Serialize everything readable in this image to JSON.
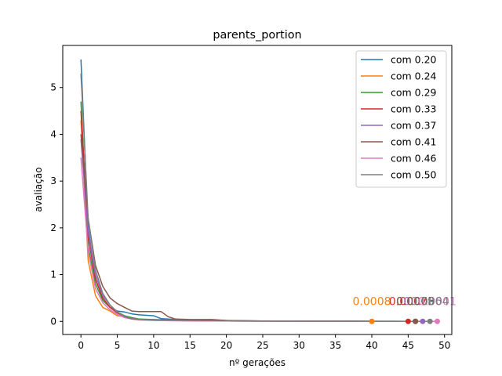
{
  "chart_data": {
    "type": "line",
    "title": "parents_portion",
    "xlabel": "nº gerações",
    "ylabel": "avaliação",
    "xlim": [
      -2.5,
      51.0
    ],
    "ylim": [
      -0.28,
      5.9
    ],
    "xticks": [
      0,
      5,
      10,
      15,
      20,
      25,
      30,
      35,
      40,
      45,
      50
    ],
    "yticks": [
      0,
      1,
      2,
      3,
      4,
      5
    ],
    "legend_position": "top-right",
    "grid": false,
    "series": [
      {
        "name": "com 0.20",
        "color": "#1f77b4",
        "x": [
          0,
          1,
          2,
          3,
          4,
          5,
          6,
          7,
          8,
          9,
          10,
          11,
          12,
          13,
          14,
          15,
          20,
          25,
          30,
          35,
          40,
          45,
          46
        ],
        "y": [
          5.6,
          2.0,
          0.9,
          0.5,
          0.3,
          0.22,
          0.2,
          0.16,
          0.14,
          0.13,
          0.12,
          0.06,
          0.05,
          0.04,
          0.04,
          0.03,
          0.02,
          0.01,
          0.01,
          0.005,
          0.003,
          0.002,
          0.0009
        ],
        "end_label": "0.0009"
      },
      {
        "name": "com 0.24",
        "color": "#ff7f0e",
        "x": [
          0,
          1,
          2,
          3,
          4,
          5,
          6,
          7,
          8,
          10,
          15,
          20,
          30,
          40
        ],
        "y": [
          4.3,
          1.3,
          0.55,
          0.3,
          0.22,
          0.12,
          0.1,
          0.05,
          0.04,
          0.03,
          0.02,
          0.01,
          0.005,
          0.0008
        ],
        "end_label": "0.0008"
      },
      {
        "name": "com 0.29",
        "color": "#2ca02c",
        "x": [
          0,
          1,
          2,
          3,
          4,
          5,
          6,
          7,
          8,
          10,
          15,
          20,
          30,
          40,
          45,
          46
        ],
        "y": [
          4.7,
          1.6,
          0.8,
          0.45,
          0.3,
          0.2,
          0.12,
          0.08,
          0.05,
          0.04,
          0.02,
          0.01,
          0.005,
          0.003,
          0.002,
          0.0008
        ],
        "end_label": "0.0008"
      },
      {
        "name": "com 0.33",
        "color": "#d62728",
        "x": [
          0,
          1,
          2,
          3,
          4,
          5,
          6,
          7,
          8,
          10,
          15,
          20,
          30,
          40,
          45
        ],
        "y": [
          4.5,
          1.8,
          0.9,
          0.5,
          0.3,
          0.18,
          0.1,
          0.06,
          0.04,
          0.03,
          0.02,
          0.01,
          0.005,
          0.002,
          0.0007
        ],
        "end_label": "0.0007"
      },
      {
        "name": "com 0.37",
        "color": "#9467bd",
        "x": [
          0,
          1,
          2,
          3,
          4,
          5,
          6,
          7,
          8,
          10,
          15,
          20,
          30,
          40,
          45,
          47
        ],
        "y": [
          3.9,
          1.9,
          1.0,
          0.55,
          0.35,
          0.2,
          0.1,
          0.06,
          0.04,
          0.03,
          0.02,
          0.01,
          0.005,
          0.002,
          0.001,
          0.0006
        ],
        "end_label": "0.0006"
      },
      {
        "name": "com 0.41",
        "color": "#8c564b",
        "x": [
          0,
          1,
          2,
          3,
          4,
          5,
          6,
          7,
          8,
          9,
          10,
          11,
          12,
          13,
          15,
          18,
          20,
          25,
          30,
          40,
          46
        ],
        "y": [
          4.0,
          2.2,
          1.2,
          0.75,
          0.5,
          0.38,
          0.3,
          0.22,
          0.21,
          0.21,
          0.21,
          0.21,
          0.1,
          0.05,
          0.04,
          0.04,
          0.02,
          0.01,
          0.01,
          0.003,
          0.0005
        ],
        "end_label": "0.0005"
      },
      {
        "name": "com 0.46",
        "color": "#e377c2",
        "x": [
          0,
          1,
          2,
          3,
          4,
          5,
          6,
          7,
          8,
          10,
          15,
          20,
          30,
          40,
          45,
          49
        ],
        "y": [
          3.5,
          1.5,
          0.7,
          0.4,
          0.25,
          0.15,
          0.08,
          0.05,
          0.03,
          0.02,
          0.01,
          0.008,
          0.004,
          0.002,
          0.001,
          0.0001
        ],
        "end_label": "0.0001"
      },
      {
        "name": "com 0.50",
        "color": "#7f7f7f",
        "x": [
          0,
          1,
          2,
          3,
          4,
          5,
          6,
          7,
          8,
          10,
          15,
          20,
          30,
          40,
          45,
          48
        ],
        "y": [
          5.3,
          2.2,
          1.1,
          0.6,
          0.35,
          0.2,
          0.1,
          0.05,
          0.04,
          0.03,
          0.02,
          0.01,
          0.005,
          0.002,
          0.001,
          0.0004
        ],
        "end_label": "0.0004"
      }
    ]
  }
}
